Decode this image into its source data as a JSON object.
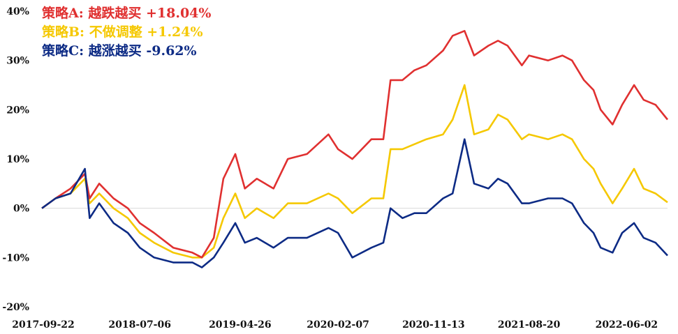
{
  "chart_data": {
    "type": "line",
    "title": "",
    "xlabel": "",
    "ylabel": "",
    "ylim": [
      -20,
      40
    ],
    "y_ticks": [
      40,
      30,
      20,
      10,
      0,
      -10,
      -20
    ],
    "y_tick_labels": [
      "40%",
      "30%",
      "20%",
      "10%",
      "0%",
      "-10%",
      "-20%"
    ],
    "x_tick_labels": [
      "2017-09-22",
      "2018-07-06",
      "2019-04-26",
      "2020-02-07",
      "2020-11-13",
      "2021-08-20",
      "2022-06-02"
    ],
    "x_tick_dates": [
      "2017-09-22",
      "2018-07-06",
      "2019-04-26",
      "2020-02-07",
      "2020-11-13",
      "2021-08-20",
      "2022-06-02"
    ],
    "x_end": "2022-09-30",
    "grid": false,
    "zero_line": true,
    "legend_position": "top-left",
    "series": [
      {
        "name": "策略A: 越跌越买 +18.04%",
        "color": "#e03030",
        "points": [
          [
            "2017-09-22",
            0
          ],
          [
            "2017-11-01",
            2
          ],
          [
            "2017-12-15",
            4
          ],
          [
            "2018-01-26",
            7
          ],
          [
            "2018-02-09",
            2
          ],
          [
            "2018-03-09",
            5
          ],
          [
            "2018-04-20",
            2
          ],
          [
            "2018-06-01",
            0
          ],
          [
            "2018-07-06",
            -3
          ],
          [
            "2018-08-17",
            -5
          ],
          [
            "2018-10-12",
            -8
          ],
          [
            "2018-12-07",
            -9
          ],
          [
            "2019-01-04",
            -10
          ],
          [
            "2019-02-08",
            -6
          ],
          [
            "2019-03-08",
            6
          ],
          [
            "2019-04-12",
            11
          ],
          [
            "2019-05-10",
            4
          ],
          [
            "2019-06-14",
            6
          ],
          [
            "2019-08-02",
            4
          ],
          [
            "2019-09-13",
            10
          ],
          [
            "2019-11-08",
            11
          ],
          [
            "2020-01-10",
            15
          ],
          [
            "2020-02-07",
            12
          ],
          [
            "2020-03-20",
            10
          ],
          [
            "2020-05-15",
            14
          ],
          [
            "2020-06-19",
            14
          ],
          [
            "2020-07-10",
            26
          ],
          [
            "2020-08-14",
            26
          ],
          [
            "2020-09-18",
            28
          ],
          [
            "2020-10-23",
            29
          ],
          [
            "2020-12-11",
            32
          ],
          [
            "2021-01-08",
            35
          ],
          [
            "2021-02-12",
            36
          ],
          [
            "2021-03-12",
            31
          ],
          [
            "2021-04-23",
            33
          ],
          [
            "2021-05-21",
            34
          ],
          [
            "2021-06-18",
            33
          ],
          [
            "2021-07-30",
            29
          ],
          [
            "2021-08-20",
            31
          ],
          [
            "2021-10-15",
            30
          ],
          [
            "2021-11-26",
            31
          ],
          [
            "2021-12-24",
            30
          ],
          [
            "2022-01-28",
            26
          ],
          [
            "2022-02-25",
            24
          ],
          [
            "2022-03-18",
            20
          ],
          [
            "2022-04-22",
            17
          ],
          [
            "2022-05-20",
            21
          ],
          [
            "2022-06-24",
            25
          ],
          [
            "2022-07-22",
            22
          ],
          [
            "2022-08-26",
            21
          ],
          [
            "2022-09-30",
            18
          ]
        ]
      },
      {
        "name": "策略B: 不做调整 +1.24%",
        "color": "#f5c800",
        "points": [
          [
            "2017-09-22",
            0
          ],
          [
            "2017-11-01",
            2
          ],
          [
            "2017-12-15",
            3
          ],
          [
            "2018-01-26",
            6
          ],
          [
            "2018-02-09",
            1
          ],
          [
            "2018-03-09",
            3
          ],
          [
            "2018-04-20",
            0
          ],
          [
            "2018-06-01",
            -2
          ],
          [
            "2018-07-06",
            -5
          ],
          [
            "2018-08-17",
            -7
          ],
          [
            "2018-10-12",
            -9
          ],
          [
            "2018-12-07",
            -10
          ],
          [
            "2019-01-04",
            -10
          ],
          [
            "2019-02-08",
            -8
          ],
          [
            "2019-03-08",
            -2
          ],
          [
            "2019-04-12",
            3
          ],
          [
            "2019-05-10",
            -2
          ],
          [
            "2019-06-14",
            0
          ],
          [
            "2019-08-02",
            -2
          ],
          [
            "2019-09-13",
            1
          ],
          [
            "2019-11-08",
            1
          ],
          [
            "2020-01-10",
            3
          ],
          [
            "2020-02-07",
            2
          ],
          [
            "2020-03-20",
            -1
          ],
          [
            "2020-05-15",
            2
          ],
          [
            "2020-06-19",
            2
          ],
          [
            "2020-07-10",
            12
          ],
          [
            "2020-08-14",
            12
          ],
          [
            "2020-09-18",
            13
          ],
          [
            "2020-10-23",
            14
          ],
          [
            "2020-12-11",
            15
          ],
          [
            "2021-01-08",
            18
          ],
          [
            "2021-02-12",
            25
          ],
          [
            "2021-03-12",
            15
          ],
          [
            "2021-04-23",
            16
          ],
          [
            "2021-05-21",
            19
          ],
          [
            "2021-06-18",
            18
          ],
          [
            "2021-07-30",
            14
          ],
          [
            "2021-08-20",
            15
          ],
          [
            "2021-10-15",
            14
          ],
          [
            "2021-11-26",
            15
          ],
          [
            "2021-12-24",
            14
          ],
          [
            "2022-01-28",
            10
          ],
          [
            "2022-02-25",
            8
          ],
          [
            "2022-03-18",
            5
          ],
          [
            "2022-04-22",
            1
          ],
          [
            "2022-05-20",
            4
          ],
          [
            "2022-06-24",
            8
          ],
          [
            "2022-07-22",
            4
          ],
          [
            "2022-08-26",
            3
          ],
          [
            "2022-09-30",
            1.2
          ]
        ]
      },
      {
        "name": "策略C: 越涨越买 -9.62%",
        "color": "#0d2b85",
        "points": [
          [
            "2017-09-22",
            0
          ],
          [
            "2017-11-01",
            2
          ],
          [
            "2017-12-15",
            3
          ],
          [
            "2018-01-26",
            8
          ],
          [
            "2018-02-09",
            -2
          ],
          [
            "2018-03-09",
            1
          ],
          [
            "2018-04-20",
            -3
          ],
          [
            "2018-06-01",
            -5
          ],
          [
            "2018-07-06",
            -8
          ],
          [
            "2018-08-17",
            -10
          ],
          [
            "2018-10-12",
            -11
          ],
          [
            "2018-12-07",
            -11
          ],
          [
            "2019-01-04",
            -12
          ],
          [
            "2019-02-08",
            -10
          ],
          [
            "2019-03-08",
            -7
          ],
          [
            "2019-04-12",
            -3
          ],
          [
            "2019-05-10",
            -7
          ],
          [
            "2019-06-14",
            -6
          ],
          [
            "2019-08-02",
            -8
          ],
          [
            "2019-09-13",
            -6
          ],
          [
            "2019-11-08",
            -6
          ],
          [
            "2020-01-10",
            -4
          ],
          [
            "2020-02-07",
            -5
          ],
          [
            "2020-03-20",
            -10
          ],
          [
            "2020-05-15",
            -8
          ],
          [
            "2020-06-19",
            -7
          ],
          [
            "2020-07-10",
            0
          ],
          [
            "2020-08-14",
            -2
          ],
          [
            "2020-09-18",
            -1
          ],
          [
            "2020-10-23",
            -1
          ],
          [
            "2020-12-11",
            2
          ],
          [
            "2021-01-08",
            3
          ],
          [
            "2021-02-12",
            14
          ],
          [
            "2021-03-12",
            5
          ],
          [
            "2021-04-23",
            4
          ],
          [
            "2021-05-21",
            6
          ],
          [
            "2021-06-18",
            5
          ],
          [
            "2021-07-30",
            1
          ],
          [
            "2021-08-20",
            1
          ],
          [
            "2021-10-15",
            2
          ],
          [
            "2021-11-26",
            2
          ],
          [
            "2021-12-24",
            1
          ],
          [
            "2022-01-28",
            -3
          ],
          [
            "2022-02-25",
            -5
          ],
          [
            "2022-03-18",
            -8
          ],
          [
            "2022-04-22",
            -9
          ],
          [
            "2022-05-20",
            -5
          ],
          [
            "2022-06-24",
            -3
          ],
          [
            "2022-07-22",
            -6
          ],
          [
            "2022-08-26",
            -7
          ],
          [
            "2022-09-30",
            -9.6
          ]
        ]
      }
    ]
  }
}
